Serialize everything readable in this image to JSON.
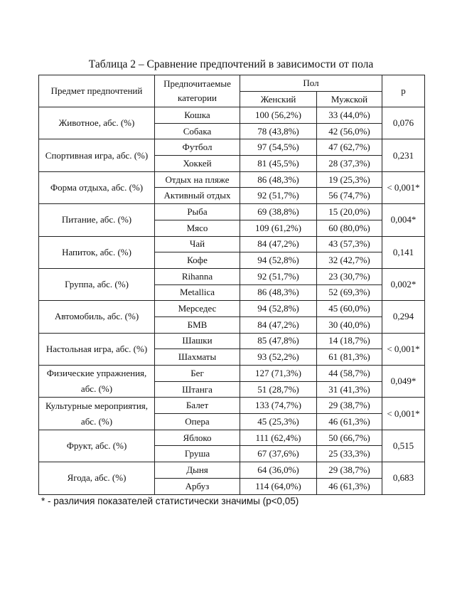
{
  "title": "Таблица 2 – Сравнение предпочтений в зависимости от пола",
  "table": {
    "headers": {
      "subject": "Предмет предпочтений",
      "category": "Предпочитаемые категории",
      "sex": "Пол",
      "female": "Женский",
      "male": "Мужской",
      "p": "p"
    },
    "groups": [
      {
        "subject": "Животное, абс. (%)",
        "p": "0,076",
        "rows": [
          {
            "category": "Кошка",
            "female": "100 (56,2%)",
            "male": "33 (44,0%)"
          },
          {
            "category": "Собака",
            "female": "78 (43,8%)",
            "male": "42 (56,0%)"
          }
        ]
      },
      {
        "subject": "Спортивная игра, абс. (%)",
        "p": "0,231",
        "rows": [
          {
            "category": "Футбол",
            "female": "97 (54,5%)",
            "male": "47 (62,7%)"
          },
          {
            "category": "Хоккей",
            "female": "81 (45,5%)",
            "male": "28 (37,3%)"
          }
        ]
      },
      {
        "subject": "Форма отдыха, абс. (%)",
        "p": "< 0,001*",
        "rows": [
          {
            "category": "Отдых на пляже",
            "female": "86 (48,3%)",
            "male": "19 (25,3%)"
          },
          {
            "category": "Активный отдых",
            "female": "92 (51,7%)",
            "male": "56 (74,7%)"
          }
        ]
      },
      {
        "subject": "Питание, абс. (%)",
        "p": "0,004*",
        "rows": [
          {
            "category": "Рыба",
            "female": "69 (38,8%)",
            "male": "15 (20,0%)"
          },
          {
            "category": "Мясо",
            "female": "109 (61,2%)",
            "male": "60 (80,0%)"
          }
        ]
      },
      {
        "subject": "Напиток, абс. (%)",
        "p": "0,141",
        "rows": [
          {
            "category": "Чай",
            "female": "84 (47,2%)",
            "male": "43 (57,3%)"
          },
          {
            "category": "Кофе",
            "female": "94 (52,8%)",
            "male": "32 (42,7%)"
          }
        ]
      },
      {
        "subject": "Группа, абс. (%)",
        "p": "0,002*",
        "rows": [
          {
            "category": "Rihanna",
            "female": "92 (51,7%)",
            "male": "23 (30,7%)"
          },
          {
            "category": "Metallica",
            "female": "86 (48,3%)",
            "male": "52 (69,3%)"
          }
        ]
      },
      {
        "subject": "Автомобиль, абс. (%)",
        "p": "0,294",
        "rows": [
          {
            "category": "Мерседес",
            "female": "94 (52,8%)",
            "male": "45 (60,0%)"
          },
          {
            "category": "БМВ",
            "female": "84 (47,2%)",
            "male": "30 (40,0%)"
          }
        ]
      },
      {
        "subject": "Настольная игра, абс. (%)",
        "p": "< 0,001*",
        "rows": [
          {
            "category": "Шашки",
            "female": "85 (47,8%)",
            "male": "14 (18,7%)"
          },
          {
            "category": "Шахматы",
            "female": "93 (52,2%)",
            "male": "61 (81,3%)"
          }
        ]
      },
      {
        "subject": "Физические упражнения, абс. (%)",
        "p": "0,049*",
        "rows": [
          {
            "category": "Бег",
            "female": "127 (71,3%)",
            "male": "44 (58,7%)"
          },
          {
            "category": "Штанга",
            "female": "51 (28,7%)",
            "male": "31 (41,3%)"
          }
        ]
      },
      {
        "subject": "Культурные мероприятия, абс. (%)",
        "p": "< 0,001*",
        "rows": [
          {
            "category": "Балет",
            "female": "133 (74,7%)",
            "male": "29 (38,7%)"
          },
          {
            "category": "Опера",
            "female": "45 (25,3%)",
            "male": "46 (61,3%)"
          }
        ]
      },
      {
        "subject": "Фрукт, абс. (%)",
        "p": "0,515",
        "rows": [
          {
            "category": "Яблоко",
            "female": "111 (62,4%)",
            "male": "50 (66,7%)"
          },
          {
            "category": "Груша",
            "female": "67 (37,6%)",
            "male": "25 (33,3%)"
          }
        ]
      },
      {
        "subject": "Ягода, абс. (%)",
        "p": "0,683",
        "rows": [
          {
            "category": "Дыня",
            "female": "64 (36,0%)",
            "male": "29 (38,7%)"
          },
          {
            "category": "Арбуз",
            "female": "114 (64,0%)",
            "male": "46 (61,3%)"
          }
        ]
      }
    ]
  },
  "footnote": "* - различия показателей статистически значимы (p<0,05)"
}
